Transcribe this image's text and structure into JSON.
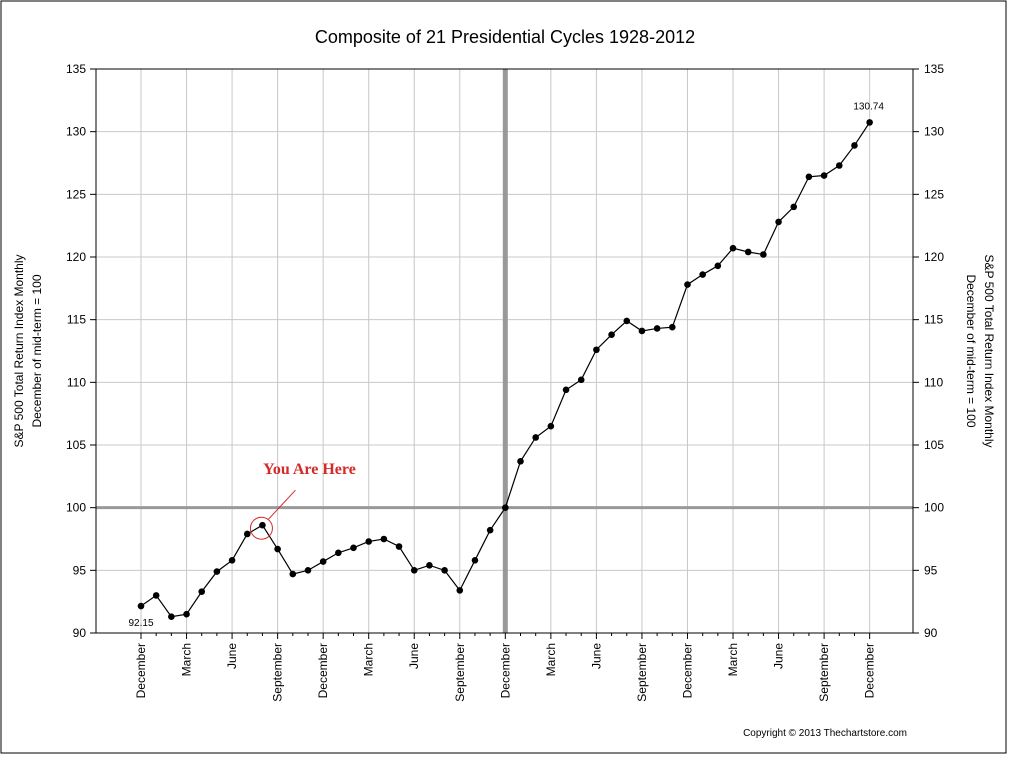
{
  "chart_data": {
    "type": "line",
    "title": "Composite of 21 Presidential Cycles 1928-2012",
    "ylabel_left": [
      "S&P 500 Total Return Index Monthly",
      "December of mid-term = 100"
    ],
    "ylabel_right": [
      "S&P 500 Total Return Index Monthly",
      "December of mid-term = 100"
    ],
    "ylim": [
      90,
      135
    ],
    "yticks": [
      "90",
      "95",
      "100",
      "105",
      "110",
      "115",
      "120",
      "125",
      "130",
      "135"
    ],
    "xtick_labels": [
      "December",
      "March",
      "June",
      "September",
      "December",
      "March",
      "June",
      "September",
      "December",
      "March",
      "June",
      "September",
      "December",
      "March",
      "June",
      "September",
      "December"
    ],
    "values": [
      92.15,
      93.0,
      91.3,
      91.5,
      93.3,
      94.9,
      95.8,
      97.9,
      98.6,
      96.7,
      94.7,
      95.0,
      95.7,
      96.4,
      96.8,
      97.3,
      97.5,
      96.9,
      95.0,
      95.4,
      95.0,
      93.4,
      95.8,
      98.2,
      100.0,
      103.7,
      105.6,
      106.5,
      109.4,
      110.2,
      112.6,
      113.8,
      114.9,
      114.1,
      114.3,
      114.4,
      117.8,
      118.6,
      119.3,
      120.7,
      120.4,
      120.2,
      122.8,
      124.0,
      126.4,
      126.5,
      127.3,
      128.9,
      130.74
    ],
    "data_labels": {
      "first": "92.15",
      "last": "130.74"
    },
    "reference_line_y": 100,
    "reference_line_x_index": 24,
    "annotation": {
      "text": "You Are Here",
      "point_index": 8,
      "color": "#d42a2a"
    },
    "grid": true,
    "line_color": "#000000",
    "grid_color": "#c8c8c8",
    "reference_color": "#999999",
    "copyright": "Copyright © 2013 Thechartstore.com"
  }
}
